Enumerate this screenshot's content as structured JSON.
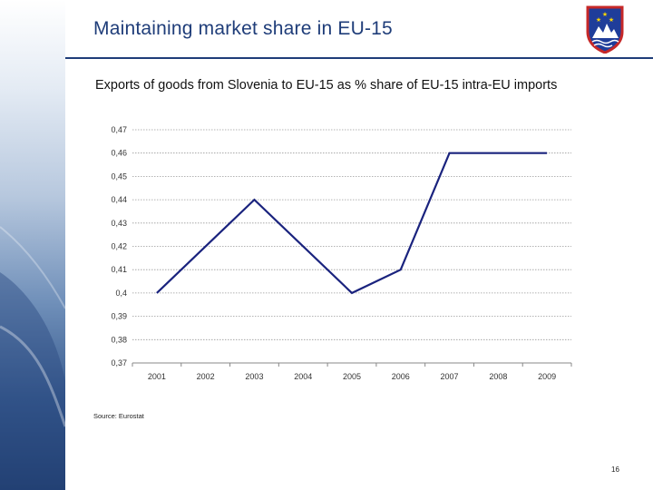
{
  "slide": {
    "title": "Maintaining market share in EU-15",
    "subtitle": "Exports of goods from Slovenia to EU-15 as %  share of  EU-15 intra-EU imports",
    "source": "Source: Eurostat",
    "page_number": "16"
  },
  "colors": {
    "accent": "#1f3d79",
    "line": "#1a237e",
    "grid": "#9a9a9a"
  },
  "icons": {
    "crest": "slovenia-coat-of-arms-icon"
  },
  "chart_data": {
    "type": "line",
    "title": "",
    "xlabel": "",
    "ylabel": "",
    "categories": [
      "2001",
      "2002",
      "2003",
      "2004",
      "2005",
      "2006",
      "2007",
      "2008",
      "2009"
    ],
    "series": [
      {
        "points": [
          [
            0,
            0.4
          ],
          [
            2,
            0.44
          ],
          [
            4,
            0.4
          ],
          [
            5,
            0.41
          ],
          [
            6,
            0.46
          ],
          [
            8,
            0.46
          ]
        ]
      }
    ],
    "yticks": [
      "0,47",
      "0,46",
      "0,45",
      "0,44",
      "0,43",
      "0,42",
      "0,41",
      "0,4",
      "0,39",
      "0,38",
      "0,37"
    ],
    "ylim": [
      0.37,
      0.47
    ],
    "grid": "horizontal-dotted",
    "legend": "none"
  }
}
